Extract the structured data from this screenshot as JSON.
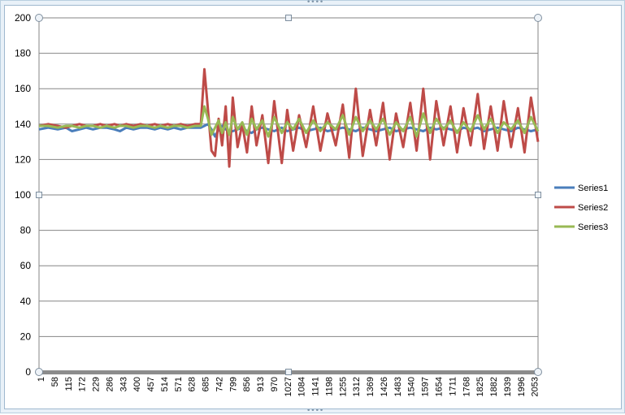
{
  "chart_data": {
    "type": "line",
    "title": "",
    "xlabel": "",
    "ylabel": "",
    "ylim": [
      0,
      200
    ],
    "yticks": [
      0,
      20,
      40,
      60,
      80,
      100,
      120,
      140,
      160,
      180,
      200
    ],
    "xticks": [
      "1",
      "58",
      "115",
      "172",
      "229",
      "286",
      "343",
      "400",
      "457",
      "514",
      "571",
      "628",
      "685",
      "742",
      "799",
      "856",
      "913",
      "970",
      "1027",
      "1084",
      "1141",
      "1198",
      "1255",
      "1312",
      "1369",
      "1426",
      "1483",
      "1540",
      "1597",
      "1654",
      "1711",
      "1768",
      "1825",
      "1882",
      "1939",
      "1996",
      "2053"
    ],
    "xlim": [
      1,
      2110
    ],
    "grid": "horizontal",
    "legend_position": "right",
    "series": [
      {
        "name": "Series1",
        "color": "#4a7ebb",
        "x": [
          1,
          40,
          80,
          115,
          140,
          172,
          200,
          229,
          260,
          286,
          320,
          343,
          370,
          400,
          430,
          457,
          490,
          514,
          545,
          571,
          600,
          628,
          660,
          685,
          700,
          715,
          730,
          745,
          760,
          775,
          790,
          805,
          820,
          840,
          860,
          880,
          900,
          920,
          945,
          970,
          995,
          1027,
          1050,
          1075,
          1100,
          1130,
          1160,
          1190,
          1220,
          1255,
          1285,
          1312,
          1340,
          1369,
          1400,
          1426,
          1455,
          1483,
          1510,
          1540,
          1570,
          1597,
          1625,
          1654,
          1680,
          1711,
          1740,
          1768,
          1795,
          1825,
          1855,
          1882,
          1910,
          1939,
          1965,
          1996,
          2025,
          2053,
          2080,
          2110
        ],
        "y": [
          137,
          138,
          137,
          138,
          136,
          137,
          138,
          137,
          138,
          138,
          137,
          136,
          138,
          137,
          138,
          138,
          137,
          138,
          137,
          138,
          137,
          138,
          138,
          138,
          139,
          140,
          137,
          133,
          137,
          139,
          137,
          136,
          136,
          137,
          138,
          136,
          135,
          137,
          138,
          137,
          136,
          138,
          136,
          137,
          138,
          136,
          137,
          138,
          136,
          137,
          138,
          137,
          136,
          138,
          137,
          136,
          137,
          138,
          136,
          137,
          138,
          137,
          136,
          138,
          137,
          138,
          137,
          136,
          138,
          137,
          138,
          136,
          137,
          138,
          137,
          136,
          138,
          137,
          136,
          137
        ]
      },
      {
        "name": "Series2",
        "color": "#be4b48",
        "x": [
          1,
          40,
          80,
          115,
          140,
          172,
          200,
          229,
          260,
          286,
          320,
          343,
          370,
          400,
          430,
          457,
          490,
          514,
          545,
          571,
          600,
          628,
          660,
          685,
          700,
          715,
          730,
          745,
          760,
          775,
          790,
          805,
          820,
          840,
          860,
          880,
          900,
          920,
          945,
          970,
          995,
          1027,
          1050,
          1075,
          1100,
          1130,
          1160,
          1190,
          1220,
          1255,
          1285,
          1312,
          1340,
          1369,
          1400,
          1426,
          1455,
          1483,
          1510,
          1540,
          1570,
          1597,
          1625,
          1654,
          1680,
          1711,
          1740,
          1768,
          1795,
          1825,
          1855,
          1882,
          1910,
          1939,
          1965,
          1996,
          2025,
          2053,
          2080,
          2110
        ],
        "y": [
          139,
          140,
          139,
          138,
          139,
          140,
          139,
          139,
          140,
          139,
          140,
          139,
          140,
          139,
          140,
          139,
          140,
          139,
          140,
          139,
          140,
          139,
          140,
          140,
          171,
          148,
          125,
          122,
          143,
          128,
          150,
          116,
          155,
          127,
          140,
          124,
          150,
          128,
          145,
          118,
          153,
          118,
          148,
          125,
          145,
          127,
          150,
          125,
          146,
          128,
          151,
          121,
          160,
          122,
          148,
          128,
          152,
          120,
          146,
          127,
          152,
          125,
          160,
          120,
          153,
          128,
          150,
          124,
          149,
          128,
          157,
          126,
          150,
          125,
          153,
          127,
          149,
          124,
          155,
          130
        ]
      },
      {
        "name": "Series3",
        "color": "#98b954",
        "x": [
          1,
          40,
          80,
          115,
          140,
          172,
          200,
          229,
          260,
          286,
          320,
          343,
          370,
          400,
          430,
          457,
          490,
          514,
          545,
          571,
          600,
          628,
          660,
          685,
          700,
          715,
          730,
          745,
          760,
          775,
          790,
          805,
          820,
          840,
          860,
          880,
          900,
          920,
          945,
          970,
          995,
          1027,
          1050,
          1075,
          1100,
          1130,
          1160,
          1190,
          1220,
          1255,
          1285,
          1312,
          1340,
          1369,
          1400,
          1426,
          1455,
          1483,
          1510,
          1540,
          1570,
          1597,
          1625,
          1654,
          1680,
          1711,
          1740,
          1768,
          1795,
          1825,
          1855,
          1882,
          1910,
          1939,
          1965,
          1996,
          2025,
          2053,
          2080,
          2110
        ],
        "y": [
          139,
          139,
          138,
          139,
          139,
          138,
          139,
          139,
          138,
          139,
          138,
          139,
          139,
          138,
          139,
          139,
          138,
          139,
          138,
          139,
          139,
          138,
          139,
          139,
          150,
          143,
          134,
          138,
          142,
          135,
          141,
          134,
          144,
          137,
          141,
          134,
          143,
          137,
          142,
          133,
          144,
          135,
          141,
          137,
          143,
          135,
          142,
          136,
          141,
          137,
          145,
          134,
          144,
          136,
          142,
          137,
          143,
          134,
          141,
          136,
          144,
          133,
          146,
          135,
          143,
          137,
          142,
          135,
          141,
          136,
          145,
          137,
          143,
          135,
          141,
          137,
          142,
          135,
          144,
          136
        ]
      }
    ]
  }
}
